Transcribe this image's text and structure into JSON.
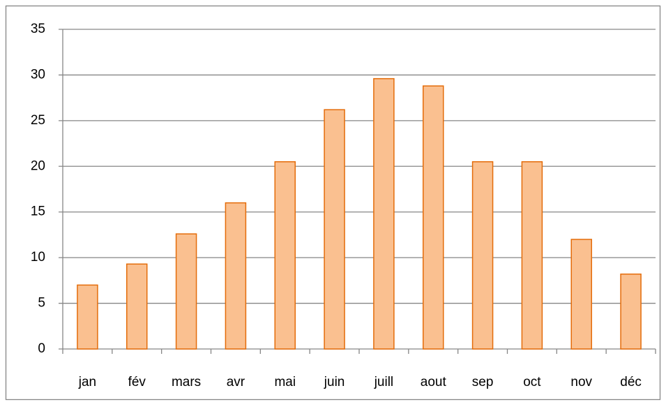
{
  "chart_data": {
    "type": "bar",
    "categories": [
      "jan",
      "fév",
      "mars",
      "avr",
      "mai",
      "juin",
      "juill",
      "aout",
      "sep",
      "oct",
      "nov",
      "déc"
    ],
    "values": [
      7.0,
      9.3,
      12.6,
      16.0,
      20.5,
      26.2,
      29.6,
      28.8,
      20.5,
      20.5,
      12.0,
      8.2
    ],
    "color": "#fac090",
    "edge_color": "#e46c0a",
    "ylim": [
      0,
      35
    ],
    "yticks": [
      0,
      5,
      10,
      15,
      20,
      25,
      30,
      35
    ],
    "grid": true
  }
}
